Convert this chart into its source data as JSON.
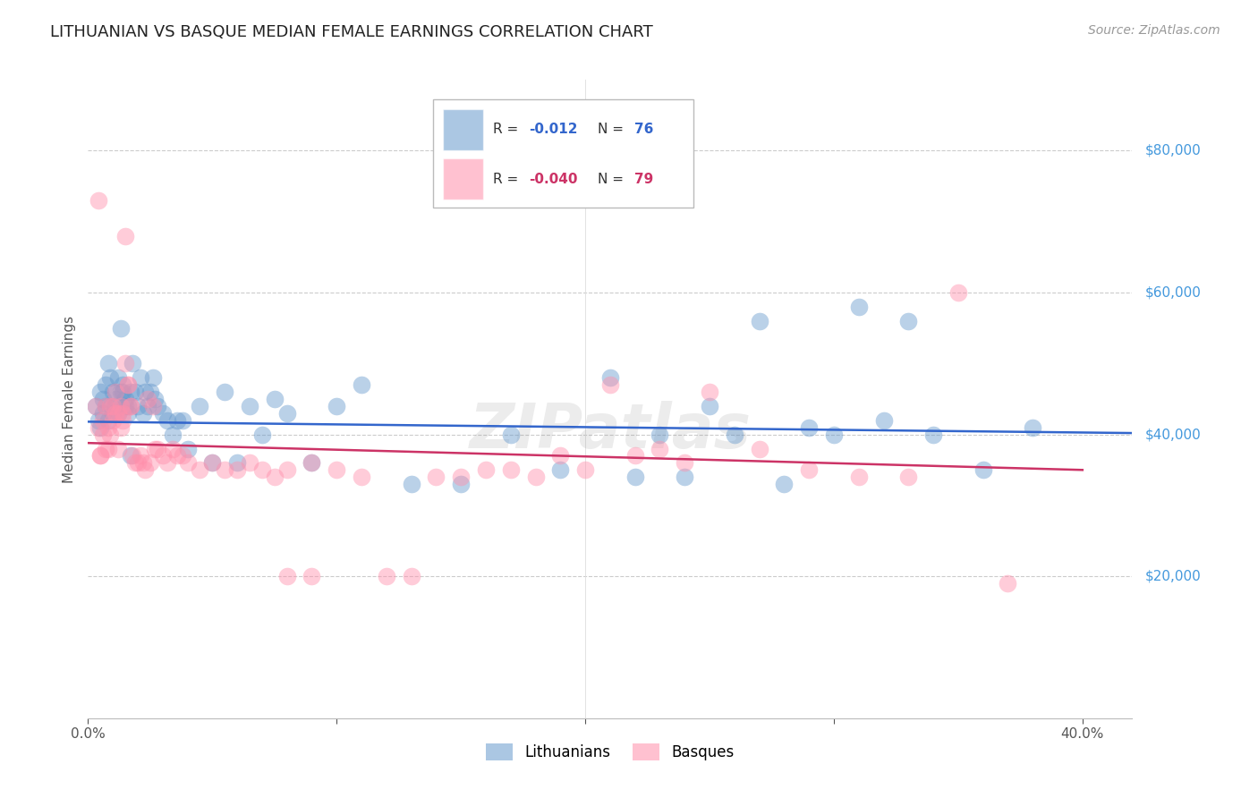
{
  "title": "LITHUANIAN VS BASQUE MEDIAN FEMALE EARNINGS CORRELATION CHART",
  "source": "Source: ZipAtlas.com",
  "ylabel": "Median Female Earnings",
  "ytick_labels": [
    "$20,000",
    "$40,000",
    "$60,000",
    "$80,000"
  ],
  "ytick_values": [
    20000,
    40000,
    60000,
    80000
  ],
  "ylim": [
    0,
    90000
  ],
  "xlim": [
    0.0,
    0.42
  ],
  "watermark": "ZIPatlas",
  "background_color": "#FFFFFF",
  "grid_color": "#CCCCCC",
  "ytick_color": "#4499DD",
  "blue_color": "#6699CC",
  "pink_color": "#FF8FAB",
  "blue_line_color": "#3366CC",
  "pink_line_color": "#CC3366",
  "title_fontsize": 13,
  "source_fontsize": 10,
  "axis_label_fontsize": 11,
  "tick_fontsize": 11,
  "legend_fontsize": 12,
  "blue_scatter_x": [
    0.003,
    0.004,
    0.005,
    0.005,
    0.006,
    0.006,
    0.007,
    0.007,
    0.008,
    0.008,
    0.009,
    0.009,
    0.01,
    0.01,
    0.011,
    0.011,
    0.012,
    0.012,
    0.013,
    0.013,
    0.014,
    0.014,
    0.015,
    0.015,
    0.016,
    0.016,
    0.017,
    0.017,
    0.018,
    0.019,
    0.02,
    0.021,
    0.022,
    0.023,
    0.024,
    0.025,
    0.026,
    0.027,
    0.028,
    0.03,
    0.032,
    0.034,
    0.036,
    0.038,
    0.04,
    0.045,
    0.05,
    0.055,
    0.06,
    0.065,
    0.07,
    0.075,
    0.08,
    0.09,
    0.1,
    0.11,
    0.13,
    0.15,
    0.17,
    0.19,
    0.21,
    0.23,
    0.25,
    0.27,
    0.29,
    0.3,
    0.32,
    0.34,
    0.36,
    0.38,
    0.22,
    0.24,
    0.26,
    0.28,
    0.31,
    0.33
  ],
  "blue_scatter_y": [
    44000,
    42000,
    46000,
    41000,
    45000,
    43000,
    44000,
    47000,
    42000,
    50000,
    44000,
    48000,
    43000,
    46000,
    44000,
    45000,
    48000,
    43000,
    46000,
    55000,
    47000,
    46000,
    45000,
    44000,
    43000,
    44000,
    37000,
    46000,
    50000,
    46000,
    44000,
    48000,
    43000,
    46000,
    44000,
    46000,
    48000,
    45000,
    44000,
    43000,
    42000,
    40000,
    42000,
    42000,
    38000,
    44000,
    36000,
    46000,
    36000,
    44000,
    40000,
    45000,
    43000,
    36000,
    44000,
    47000,
    33000,
    33000,
    40000,
    35000,
    48000,
    40000,
    44000,
    56000,
    41000,
    40000,
    42000,
    40000,
    35000,
    41000,
    34000,
    34000,
    40000,
    33000,
    58000,
    56000
  ],
  "pink_scatter_x": [
    0.003,
    0.004,
    0.004,
    0.005,
    0.005,
    0.006,
    0.006,
    0.007,
    0.007,
    0.008,
    0.008,
    0.009,
    0.009,
    0.01,
    0.01,
    0.011,
    0.011,
    0.012,
    0.012,
    0.013,
    0.013,
    0.014,
    0.014,
    0.015,
    0.015,
    0.016,
    0.016,
    0.017,
    0.017,
    0.018,
    0.019,
    0.02,
    0.021,
    0.022,
    0.023,
    0.024,
    0.025,
    0.026,
    0.027,
    0.028,
    0.03,
    0.032,
    0.034,
    0.036,
    0.038,
    0.04,
    0.045,
    0.05,
    0.055,
    0.06,
    0.065,
    0.07,
    0.075,
    0.08,
    0.09,
    0.1,
    0.11,
    0.13,
    0.15,
    0.17,
    0.19,
    0.21,
    0.23,
    0.25,
    0.27,
    0.29,
    0.31,
    0.33,
    0.35,
    0.37,
    0.08,
    0.09,
    0.12,
    0.14,
    0.16,
    0.18,
    0.2,
    0.22,
    0.24
  ],
  "pink_scatter_y": [
    44000,
    41000,
    73000,
    37000,
    37000,
    42000,
    40000,
    38000,
    44000,
    41000,
    38000,
    44000,
    40000,
    44000,
    42000,
    43000,
    46000,
    38000,
    43000,
    44000,
    41000,
    42000,
    43000,
    68000,
    50000,
    47000,
    47000,
    44000,
    44000,
    37000,
    36000,
    36000,
    37000,
    36000,
    35000,
    45000,
    36000,
    44000,
    38000,
    38000,
    37000,
    36000,
    38000,
    37000,
    37000,
    36000,
    35000,
    36000,
    35000,
    35000,
    36000,
    35000,
    34000,
    35000,
    36000,
    35000,
    34000,
    20000,
    34000,
    35000,
    37000,
    47000,
    38000,
    46000,
    38000,
    35000,
    34000,
    34000,
    60000,
    19000,
    20000,
    20000,
    20000,
    34000,
    35000,
    34000,
    35000,
    37000,
    36000
  ],
  "blue_trend_x": [
    0.0,
    0.42
  ],
  "blue_trend_y": [
    41800,
    40200
  ],
  "pink_trend_x": [
    0.0,
    0.4
  ],
  "pink_trend_y": [
    38800,
    35000
  ]
}
